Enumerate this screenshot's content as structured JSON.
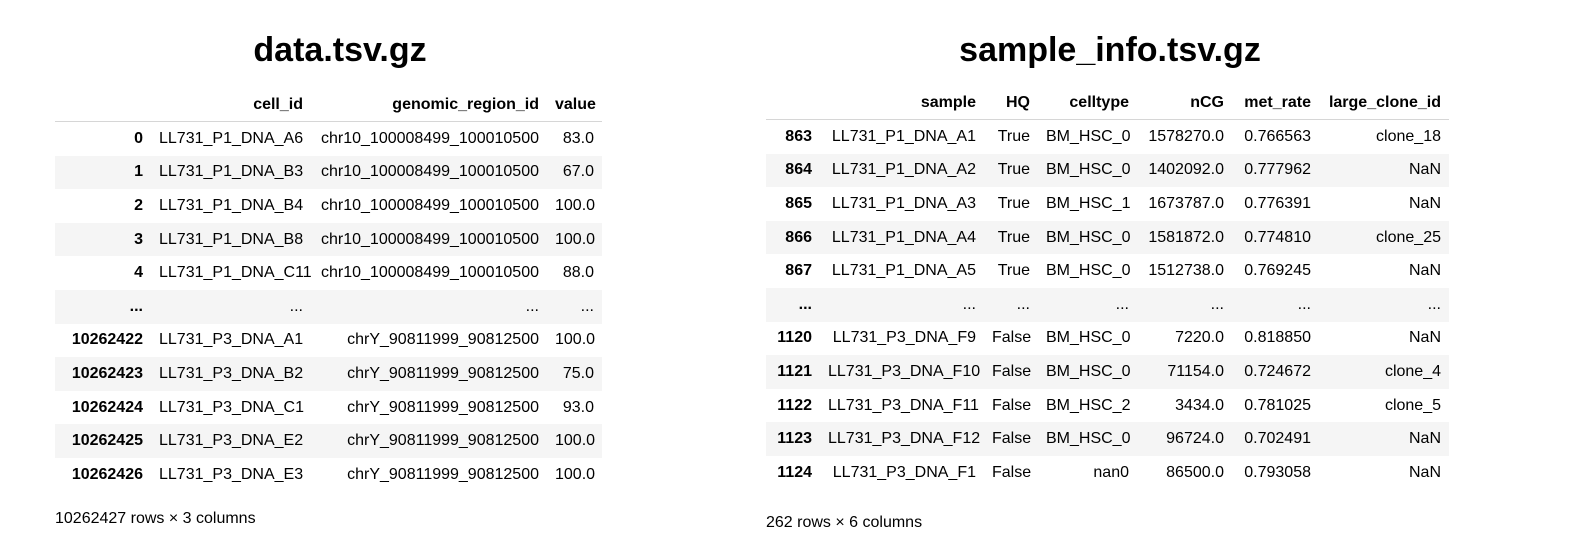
{
  "left": {
    "title": "data.tsv.gz",
    "columns": [
      "cell_id",
      "genomic_region_id",
      "value"
    ],
    "rows": [
      {
        "index": "0",
        "cells": [
          "LL731_P1_DNA_A6",
          "chr10_100008499_100010500",
          "83.0"
        ]
      },
      {
        "index": "1",
        "cells": [
          "LL731_P1_DNA_B3",
          "chr10_100008499_100010500",
          "67.0"
        ]
      },
      {
        "index": "2",
        "cells": [
          "LL731_P1_DNA_B4",
          "chr10_100008499_100010500",
          "100.0"
        ]
      },
      {
        "index": "3",
        "cells": [
          "LL731_P1_DNA_B8",
          "chr10_100008499_100010500",
          "100.0"
        ]
      },
      {
        "index": "4",
        "cells": [
          "LL731_P1_DNA_C11",
          "chr10_100008499_100010500",
          "88.0"
        ]
      },
      {
        "index": "...",
        "cells": [
          "...",
          "...",
          "..."
        ]
      },
      {
        "index": "10262422",
        "cells": [
          "LL731_P3_DNA_A1",
          "chrY_90811999_90812500",
          "100.0"
        ]
      },
      {
        "index": "10262423",
        "cells": [
          "LL731_P3_DNA_B2",
          "chrY_90811999_90812500",
          "75.0"
        ]
      },
      {
        "index": "10262424",
        "cells": [
          "LL731_P3_DNA_C1",
          "chrY_90811999_90812500",
          "93.0"
        ]
      },
      {
        "index": "10262425",
        "cells": [
          "LL731_P3_DNA_E2",
          "chrY_90811999_90812500",
          "100.0"
        ]
      },
      {
        "index": "10262426",
        "cells": [
          "LL731_P3_DNA_E3",
          "chrY_90811999_90812500",
          "100.0"
        ]
      }
    ],
    "footer": "10262427 rows × 3 columns"
  },
  "right": {
    "title": "sample_info.tsv.gz",
    "columns": [
      "sample",
      "HQ",
      "celltype",
      "nCG",
      "met_rate",
      "large_clone_id"
    ],
    "rows": [
      {
        "index": "863",
        "cells": [
          "LL731_P1_DNA_A1",
          "True",
          "BM_HSC_0",
          "1578270.0",
          "0.766563",
          "clone_18"
        ]
      },
      {
        "index": "864",
        "cells": [
          "LL731_P1_DNA_A2",
          "True",
          "BM_HSC_0",
          "1402092.0",
          "0.777962",
          "NaN"
        ]
      },
      {
        "index": "865",
        "cells": [
          "LL731_P1_DNA_A3",
          "True",
          "BM_HSC_1",
          "1673787.0",
          "0.776391",
          "NaN"
        ]
      },
      {
        "index": "866",
        "cells": [
          "LL731_P1_DNA_A4",
          "True",
          "BM_HSC_0",
          "1581872.0",
          "0.774810",
          "clone_25"
        ]
      },
      {
        "index": "867",
        "cells": [
          "LL731_P1_DNA_A5",
          "True",
          "BM_HSC_0",
          "1512738.0",
          "0.769245",
          "NaN"
        ]
      },
      {
        "index": "...",
        "cells": [
          "...",
          "...",
          "...",
          "...",
          "...",
          "..."
        ]
      },
      {
        "index": "1120",
        "cells": [
          "LL731_P3_DNA_F9",
          "False",
          "BM_HSC_0",
          "7220.0",
          "0.818850",
          "NaN"
        ]
      },
      {
        "index": "1121",
        "cells": [
          "LL731_P3_DNA_F10",
          "False",
          "BM_HSC_0",
          "71154.0",
          "0.724672",
          "clone_4"
        ]
      },
      {
        "index": "1122",
        "cells": [
          "LL731_P3_DNA_F11",
          "False",
          "BM_HSC_2",
          "3434.0",
          "0.781025",
          "clone_5"
        ]
      },
      {
        "index": "1123",
        "cells": [
          "LL731_P3_DNA_F12",
          "False",
          "BM_HSC_0",
          "96724.0",
          "0.702491",
          "NaN"
        ]
      },
      {
        "index": "1124",
        "cells": [
          "LL731_P3_DNA_F1",
          "False",
          "nan0",
          "86500.0",
          "0.793058",
          "NaN"
        ]
      }
    ],
    "footer": "262 rows × 6 columns"
  }
}
